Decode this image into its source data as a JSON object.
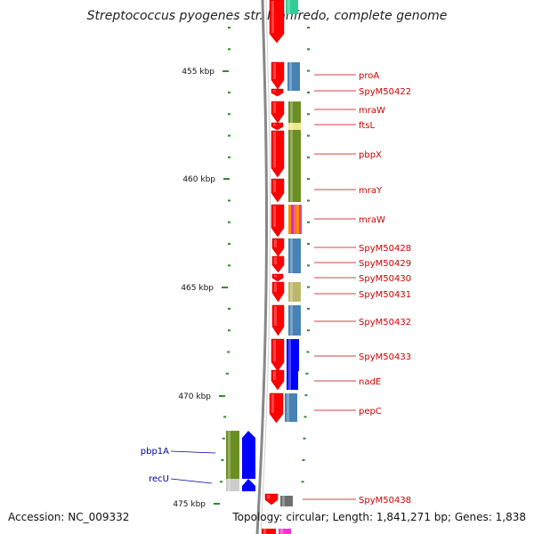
{
  "title": "Streptococcus pyogenes str. Manfredo, complete genome",
  "footer": {
    "accession": "Accession: NC_009332",
    "info": "Topology: circular; Length: 1,841,271 bp; Genes: 1,838"
  },
  "scale": {
    "tick_labels": [
      "455 kbp",
      "460 kbp",
      "465 kbp",
      "470 kbp",
      "475 kbp"
    ]
  },
  "colors": {
    "red": "#ff0000",
    "steel_blue": "#4682b4",
    "olive": "#6b8e23",
    "blue": "#0000ff",
    "khaki": "#bdb76b",
    "yellow": "#f0e68c",
    "gray": "#6e6e6e",
    "label_red": "#cc0000",
    "label_blue": "#0000aa",
    "tick_green": "#2e8b2e",
    "backbone": "#888888"
  },
  "genes": [
    {
      "label": "proA"
    },
    {
      "label": "SpyM50422"
    },
    {
      "label": "mraW"
    },
    {
      "label": "ftsL"
    },
    {
      "label": "pbpX"
    },
    {
      "label": "mraY"
    },
    {
      "label": "mraW"
    },
    {
      "label": "SpyM50428"
    },
    {
      "label": "SpyM50429"
    },
    {
      "label": "SpyM50430"
    },
    {
      "label": "SpyM50431"
    },
    {
      "label": "SpyM50432"
    },
    {
      "label": "SpyM50433"
    },
    {
      "label": "nadE"
    },
    {
      "label": "pepC"
    },
    {
      "label": "SpyM50438"
    }
  ],
  "left_genes": [
    {
      "label": "pbp1A"
    },
    {
      "label": "recU"
    }
  ]
}
